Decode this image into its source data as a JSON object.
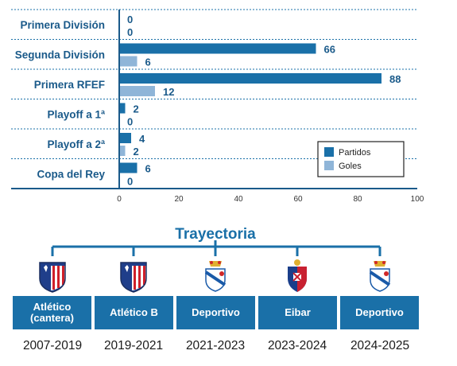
{
  "chart_data": {
    "type": "bar",
    "orientation": "horizontal",
    "categories": [
      "Primera División",
      "Segunda División",
      "Primera RFEF",
      "Playoff a 1ª",
      "Playoff a 2ª",
      "Copa del Rey"
    ],
    "series": [
      {
        "name": "Partidos",
        "color": "#1a70a8",
        "values": [
          0,
          66,
          88,
          2,
          4,
          6
        ]
      },
      {
        "name": "Goles",
        "color": "#8fb5d8",
        "values": [
          0,
          6,
          12,
          0,
          2,
          0
        ]
      }
    ],
    "xlim": [
      0,
      100
    ],
    "xticks": [
      "0",
      "20",
      "40",
      "60",
      "80",
      "100"
    ],
    "legend_placement": "bottom-right",
    "grid": "horizontal dotted separators"
  },
  "trajectory": {
    "title": "Trayectoria",
    "clubs": [
      {
        "name": "Atlético\n(cantera)",
        "years": "2007-2019",
        "crest": "atletico-madrid-crest"
      },
      {
        "name": "Atlético B",
        "years": "2019-2021",
        "crest": "atletico-madrid-crest"
      },
      {
        "name": "Deportivo",
        "years": "2021-2023",
        "crest": "deportivo-crest"
      },
      {
        "name": "Eibar",
        "years": "2023-2024",
        "crest": "eibar-crest"
      },
      {
        "name": "Deportivo",
        "years": "2024-2025",
        "crest": "deportivo-crest"
      }
    ],
    "box_color": "#1a70a8"
  }
}
